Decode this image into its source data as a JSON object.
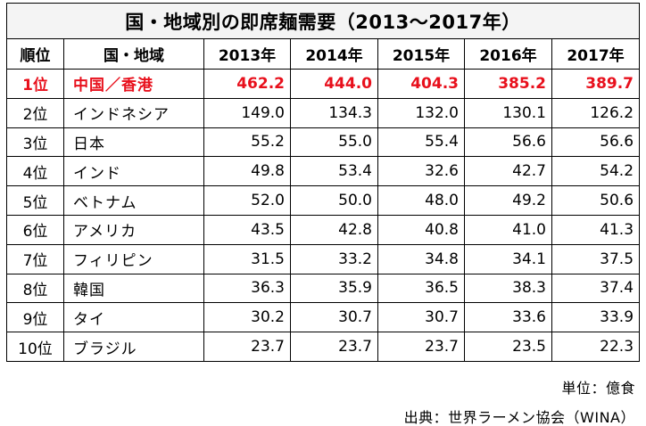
{
  "title": "国・地域別の即席麺需要（2013〜2017年）",
  "headers": [
    "順位",
    "国・地域",
    "2013年",
    "2014年",
    "2015年",
    "2016年",
    "2017年"
  ],
  "rows": [
    {
      "rank": "1位",
      "country": "中国／香港",
      "values": [
        "462.2",
        "444.0",
        "404.3",
        "385.2",
        "389.7"
      ],
      "highlight": true
    },
    {
      "rank": "2位",
      "country": "インドネシア",
      "values": [
        "149.0",
        "134.3",
        "132.0",
        "130.1",
        "126.2"
      ],
      "highlight": false
    },
    {
      "rank": "3位",
      "country": "日本",
      "values": [
        "55.2",
        "55.0",
        "55.4",
        "56.6",
        "56.6"
      ],
      "highlight": false
    },
    {
      "rank": "4位",
      "country": "インド",
      "values": [
        "49.8",
        "53.4",
        "32.6",
        "42.7",
        "54.2"
      ],
      "highlight": false
    },
    {
      "rank": "5位",
      "country": "ベトナム",
      "values": [
        "52.0",
        "50.0",
        "48.0",
        "49.2",
        "50.6"
      ],
      "highlight": false
    },
    {
      "rank": "6位",
      "country": "アメリカ",
      "values": [
        "43.5",
        "42.8",
        "40.8",
        "41.0",
        "41.3"
      ],
      "highlight": false
    },
    {
      "rank": "7位",
      "country": "フィリピン",
      "values": [
        "31.5",
        "33.2",
        "34.8",
        "34.1",
        "37.5"
      ],
      "highlight": false
    },
    {
      "rank": "8位",
      "country": "韓国",
      "values": [
        "36.3",
        "35.9",
        "36.5",
        "38.3",
        "37.4"
      ],
      "highlight": false
    },
    {
      "rank": "9位",
      "country": "タイ",
      "values": [
        "30.2",
        "30.7",
        "30.7",
        "33.6",
        "33.9"
      ],
      "highlight": false
    },
    {
      "rank": "10位",
      "country": "ブラジル",
      "values": [
        "23.7",
        "23.7",
        "23.7",
        "23.5",
        "22.3"
      ],
      "highlight": false
    }
  ],
  "unit_note": "単位：億食",
  "source_note": "出典：世界ラーメン協会（WINA）",
  "colors": {
    "highlight": "#e8101c",
    "border": "#000000"
  }
}
